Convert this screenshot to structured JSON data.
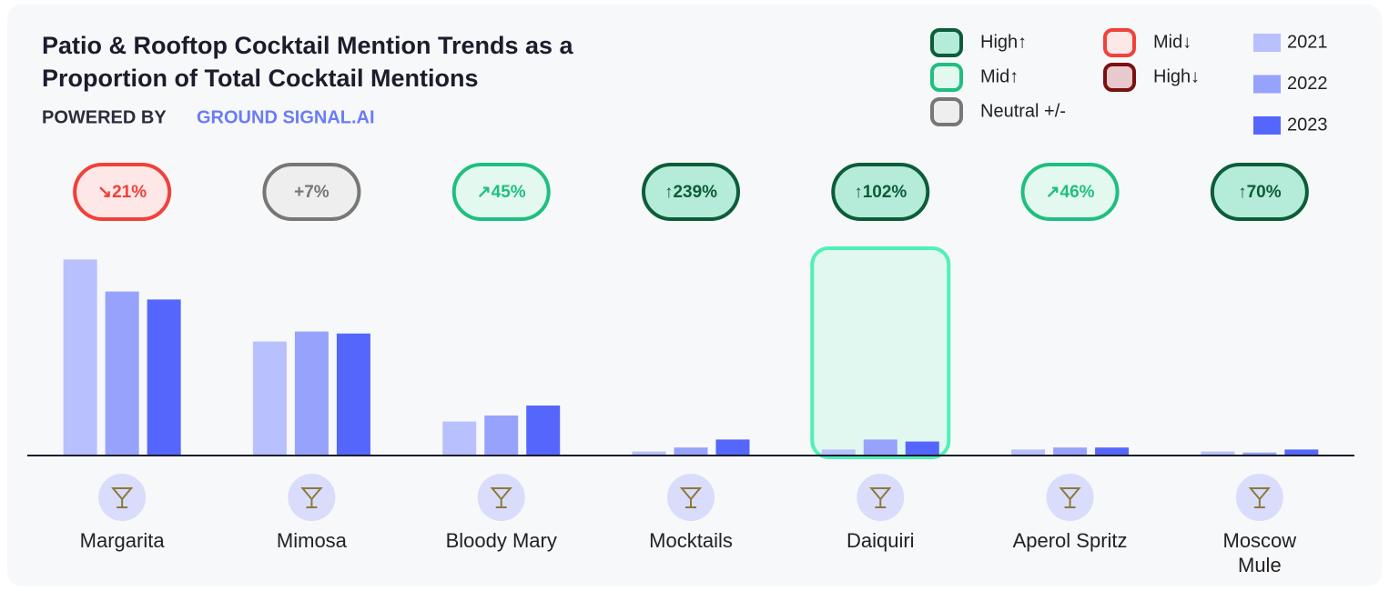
{
  "chart_data": {
    "type": "bar",
    "title": "Patio & Rooftop Cocktail Mention Trends as a Proportion of Total Cocktail Mentions",
    "subtitle": [
      "POWERED BY",
      "GROUND SIGNAL.AI"
    ],
    "categories": [
      "Margarita",
      "Mimosa",
      "Bloody Mary",
      "Mocktails",
      "Daiquiri",
      "Aperol Spritz",
      "Moscow Mule"
    ],
    "series": [
      {
        "name": "2021",
        "color": "#b8c0fd",
        "values": [
          98,
          57,
          17,
          2,
          3,
          3,
          2
        ]
      },
      {
        "name": "2022",
        "color": "#97a2fc",
        "values": [
          82,
          62,
          20,
          4,
          8,
          4,
          1.5
        ]
      },
      {
        "name": "2023",
        "color": "#5566fc",
        "values": [
          78,
          61,
          25,
          8,
          7,
          4,
          3
        ]
      }
    ],
    "ylim": [
      0,
      100
    ],
    "changes": [
      -21,
      7,
      45,
      239,
      102,
      46,
      70
    ],
    "change_labels": [
      "↘21%",
      "+7%",
      "↗45%",
      "↑239%",
      "↑102%",
      "↗46%",
      "↑70%"
    ],
    "change_levels": [
      "Mid↓",
      "Neutral +/-",
      "Mid↑",
      "High↑",
      "High↑",
      "Mid↑",
      "High↑"
    ],
    "trend_legend": [
      {
        "name": "High↑",
        "fill": "#b5ecd9",
        "stroke": "#0d5c3a"
      },
      {
        "name": "Mid↑",
        "fill": "#e3f9f0",
        "stroke": "#1fbf7f"
      },
      {
        "name": "Neutral +/-",
        "fill": "#eeeeee",
        "stroke": "#777777"
      },
      {
        "name": "Mid↓",
        "fill": "#fde7e7",
        "stroke": "#f0413a"
      },
      {
        "name": "High↓",
        "fill": "#e8c9cc",
        "stroke": "#7a1010"
      }
    ],
    "highlight": "Daiquiri"
  }
}
